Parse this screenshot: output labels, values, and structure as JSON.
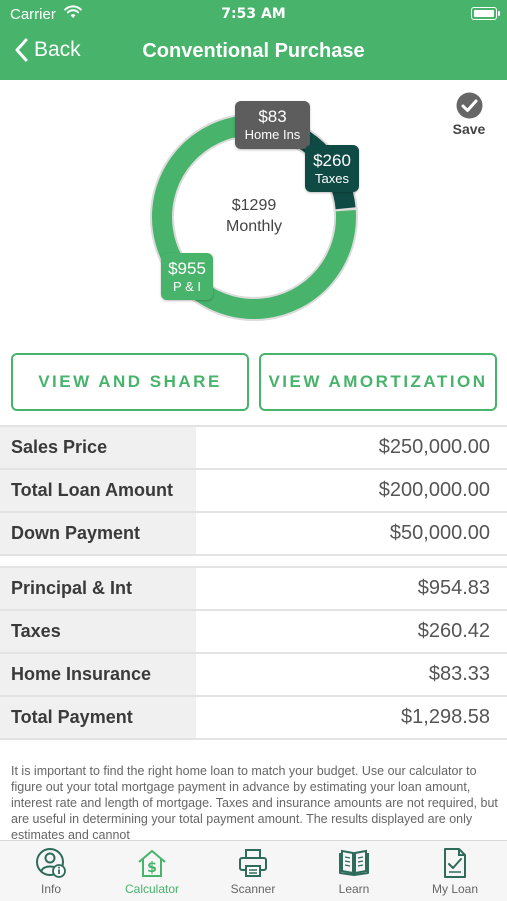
{
  "status_bar": {
    "carrier": "Carrier",
    "time": "7:53 AM"
  },
  "nav": {
    "back_label": "Back",
    "title": "Conventional Purchase"
  },
  "save_label": "Save",
  "chart_data": {
    "type": "donut",
    "center_value": "$1299",
    "center_label": "Monthly",
    "segments": [
      {
        "label": "P & I",
        "display": "$955",
        "value": 954.83,
        "color": "#47b36b"
      },
      {
        "label": "Taxes",
        "display": "$260",
        "value": 260.42,
        "color": "#0f4a44"
      },
      {
        "label": "Home Ins",
        "display": "$83",
        "value": 83.33,
        "color": "#5d5d5d"
      }
    ]
  },
  "buttons": {
    "view_share": "VIEW AND SHARE",
    "view_amortization": "VIEW AMORTIZATION"
  },
  "loan_table": [
    {
      "label": "Sales Price",
      "value": "$250,000.00"
    },
    {
      "label": "Total Loan Amount",
      "value": "$200,000.00"
    },
    {
      "label": "Down Payment",
      "value": "$50,000.00"
    }
  ],
  "payment_table": [
    {
      "label": "Principal & Int",
      "value": "$954.83"
    },
    {
      "label": "Taxes",
      "value": "$260.42"
    },
    {
      "label": "Home Insurance",
      "value": "$83.33"
    },
    {
      "label": "Total Payment",
      "value": "$1,298.58"
    }
  ],
  "disclaimer": "It is important to find the right home loan to match your budget. Use our calculator to figure out your total mortgage payment in advance by estimating your loan amount, interest rate and length of mortgage. Taxes and insurance amounts are not required, but are useful in determining your total payment amount.  The results displayed are only estimates and cannot",
  "tabs": [
    {
      "label": "Info",
      "icon": "info-person-icon",
      "active": false
    },
    {
      "label": "Calculator",
      "icon": "house-dollar-icon",
      "active": true
    },
    {
      "label": "Scanner",
      "icon": "printer-icon",
      "active": false
    },
    {
      "label": "Learn",
      "icon": "book-icon",
      "active": false
    },
    {
      "label": "My Loan",
      "icon": "document-check-icon",
      "active": false
    }
  ]
}
